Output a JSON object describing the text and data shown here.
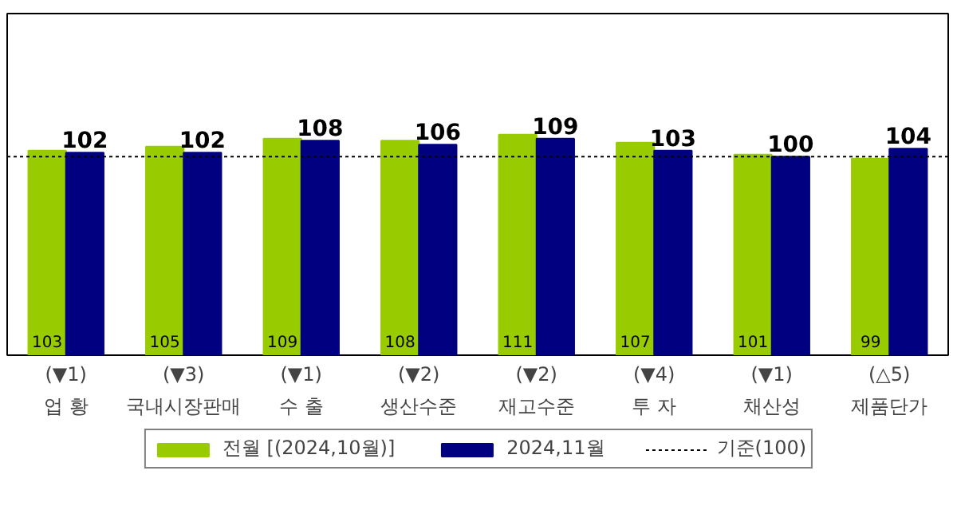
{
  "chart_data": {
    "type": "bar",
    "categories": [
      "(▼1)\n업 황",
      "(▼3)\n국내시장판매",
      "(▼1)\n수 출",
      "(▼2)\n생산수준",
      "(▼2)\n재고수준",
      "(▼4)\n투 자",
      "(▼1)\n채산성",
      "(△5)\n제품단가"
    ],
    "series": [
      {
        "name": "전월 [(2024,10월)]",
        "color": "#99cc00",
        "values": [
          103,
          105,
          109,
          108,
          111,
          107,
          101,
          99
        ]
      },
      {
        "name": "2024,11월",
        "color": "#000080",
        "values": [
          102,
          102,
          108,
          106,
          109,
          103,
          100,
          104
        ]
      }
    ],
    "ylim": [
      0,
      172
    ],
    "tick_labels": "x",
    "data_labels": true,
    "grid": false,
    "legend": "bottom",
    "ref_lines": [
      {
        "axis": "y",
        "value": 100,
        "label": "기준(100)",
        "color": "#000000",
        "line_style": "dotted"
      }
    ]
  }
}
